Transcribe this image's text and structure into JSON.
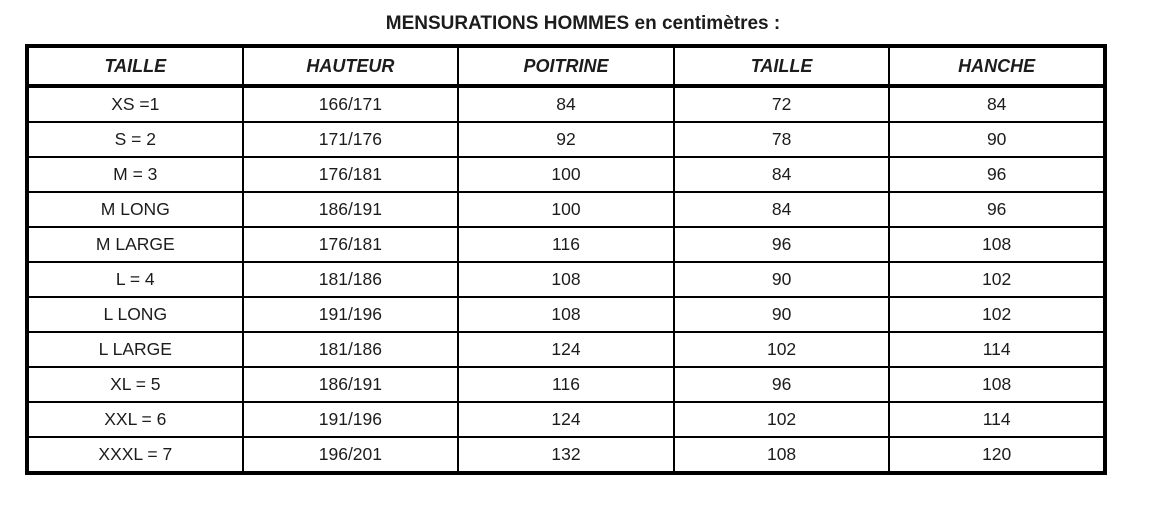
{
  "title": "MENSURATIONS HOMMES en centimètres :",
  "table": {
    "headers": [
      "TAILLE",
      "HAUTEUR",
      "POITRINE",
      "TAILLE",
      "HANCHE"
    ],
    "rows": [
      [
        "XS =1",
        "166/171",
        "84",
        "72",
        "84"
      ],
      [
        "S = 2",
        "171/176",
        "92",
        "78",
        "90"
      ],
      [
        "M = 3",
        "176/181",
        "100",
        "84",
        "96"
      ],
      [
        "M LONG",
        "186/191",
        "100",
        "84",
        "96"
      ],
      [
        "M LARGE",
        "176/181",
        "116",
        "96",
        "108"
      ],
      [
        "L = 4",
        "181/186",
        "108",
        "90",
        "102"
      ],
      [
        "L LONG",
        "191/196",
        "108",
        "90",
        "102"
      ],
      [
        "L LARGE",
        "181/186",
        "124",
        "102",
        "114"
      ],
      [
        "XL = 5",
        "186/191",
        "116",
        "96",
        "108"
      ],
      [
        "XXL = 6",
        "191/196",
        "124",
        "102",
        "114"
      ],
      [
        "XXXL = 7",
        "196/201",
        "132",
        "108",
        "120"
      ]
    ]
  },
  "colors": {
    "text": "#1c1c1c",
    "border": "#000000",
    "background": "#ffffff"
  }
}
